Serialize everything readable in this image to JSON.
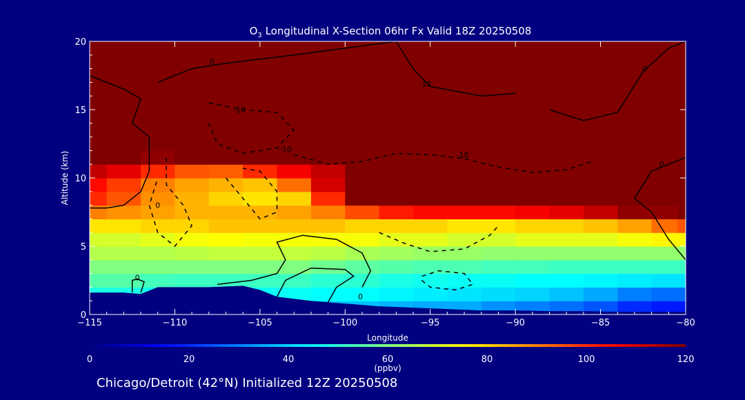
{
  "page": {
    "background": "#000080",
    "footer": "Chicago/Detroit (42°N) Initialized 12Z 20250508"
  },
  "chart_data": {
    "type": "heatmap",
    "title": {
      "species": "O",
      "subscript": "3",
      "text": " Longitudinal X-Section 06hr  Fx Valid 18Z 20250508"
    },
    "xlabel": "Longitude",
    "ylabel": "Altitude (km)",
    "xlim": [
      -115,
      -80
    ],
    "ylim": [
      0,
      20
    ],
    "xticks": [
      -115,
      -110,
      -105,
      -100,
      -95,
      -90,
      -85,
      -80
    ],
    "yticks": [
      0,
      5,
      10,
      15,
      20
    ],
    "colorbar": {
      "label": "(ppbv)",
      "range": [
        0,
        120
      ],
      "ticks": [
        0,
        20,
        40,
        60,
        80,
        100,
        120
      ],
      "colormap": "jet"
    },
    "ozone_field": {
      "x": [
        -115,
        -113,
        -111,
        -109,
        -107,
        -105,
        -103,
        -101,
        -99,
        -97,
        -95,
        -93,
        -91,
        -89,
        -87,
        -85,
        -83,
        -81,
        -80
      ],
      "altitude_km": [
        0.5,
        1.5,
        2.5,
        3.5,
        4.5,
        5.5,
        6.5,
        7.5,
        8.5,
        9.5,
        10.5,
        11.5,
        12.5,
        13.5,
        14.5,
        15.5,
        17.0,
        19.0
      ],
      "ppbv": [
        [
          45,
          45,
          40,
          38,
          38,
          38,
          38,
          38,
          38,
          36,
          35,
          35,
          32,
          30,
          28,
          25,
          20,
          18,
          18
        ],
        [
          48,
          48,
          47,
          46,
          46,
          46,
          46,
          45,
          45,
          44,
          43,
          42,
          41,
          40,
          38,
          35,
          30,
          28,
          28
        ],
        [
          55,
          55,
          53,
          52,
          52,
          52,
          52,
          50,
          50,
          48,
          47,
          46,
          46,
          45,
          45,
          44,
          43,
          42,
          42
        ],
        [
          60,
          60,
          60,
          60,
          60,
          60,
          60,
          58,
          56,
          55,
          54,
          54,
          53,
          53,
          52,
          52,
          52,
          52,
          52
        ],
        [
          66,
          66,
          66,
          67,
          68,
          68,
          68,
          67,
          65,
          64,
          63,
          63,
          62,
          62,
          62,
          62,
          62,
          62,
          62
        ],
        [
          70,
          70,
          72,
          74,
          75,
          74,
          74,
          74,
          74,
          72,
          72,
          70,
          70,
          72,
          72,
          72,
          74,
          76,
          76
        ],
        [
          78,
          78,
          80,
          80,
          82,
          82,
          82,
          82,
          80,
          80,
          80,
          78,
          78,
          80,
          80,
          82,
          86,
          92,
          95
        ],
        [
          90,
          88,
          86,
          84,
          84,
          84,
          86,
          90,
          96,
          102,
          104,
          104,
          104,
          106,
          108,
          112,
          118,
          118,
          120
        ],
        [
          100,
          95,
          88,
          84,
          80,
          78,
          80,
          100,
          120,
          120,
          120,
          120,
          120,
          120,
          120,
          120,
          120,
          120,
          120
        ],
        [
          104,
          98,
          90,
          86,
          84,
          82,
          92,
          110,
          120,
          120,
          120,
          120,
          120,
          120,
          120,
          120,
          120,
          120,
          120
        ],
        [
          112,
          108,
          100,
          95,
          94,
          100,
          106,
          112,
          120,
          120,
          120,
          120,
          120,
          120,
          120,
          120,
          120,
          120,
          120
        ],
        [
          120,
          120,
          118,
          120,
          120,
          120,
          120,
          120,
          120,
          120,
          120,
          120,
          120,
          120,
          120,
          120,
          120,
          120,
          120
        ],
        [
          120,
          120,
          120,
          120,
          120,
          120,
          120,
          120,
          120,
          120,
          120,
          120,
          120,
          120,
          120,
          120,
          120,
          120,
          120
        ],
        [
          120,
          120,
          120,
          120,
          120,
          120,
          120,
          120,
          120,
          120,
          120,
          120,
          120,
          120,
          120,
          120,
          120,
          120,
          120
        ],
        [
          120,
          120,
          120,
          120,
          120,
          120,
          120,
          120,
          120,
          120,
          120,
          120,
          120,
          120,
          120,
          120,
          120,
          120,
          120
        ],
        [
          120,
          120,
          120,
          120,
          120,
          120,
          120,
          120,
          120,
          120,
          120,
          120,
          120,
          120,
          120,
          120,
          120,
          120,
          120
        ],
        [
          120,
          120,
          120,
          120,
          120,
          120,
          120,
          120,
          120,
          120,
          120,
          120,
          120,
          120,
          120,
          120,
          120,
          120,
          120
        ],
        [
          120,
          120,
          120,
          120,
          120,
          120,
          120,
          120,
          120,
          120,
          120,
          120,
          120,
          120,
          120,
          120,
          120,
          120,
          120
        ]
      ]
    },
    "terrain": {
      "x": [
        -115,
        -113,
        -112,
        -111,
        -110,
        -108,
        -106,
        -105,
        -104,
        -102,
        -100,
        -98,
        -96,
        -94,
        -92,
        -90,
        -88,
        -86,
        -84,
        -82,
        -80
      ],
      "altitude_km": [
        1.6,
        1.6,
        1.5,
        2.0,
        2.0,
        2.0,
        2.1,
        1.8,
        1.3,
        1.0,
        0.8,
        0.6,
        0.5,
        0.4,
        0.3,
        0.3,
        0.25,
        0.25,
        0.2,
        0.2,
        0.2
      ]
    },
    "contour_labels": [
      {
        "text": "0",
        "x": -107.8,
        "y": 18.3
      },
      {
        "text": "-10",
        "x": -95.3,
        "y": 16.7
      },
      {
        "text": "-10",
        "x": -106.2,
        "y": 14.8
      },
      {
        "text": "-10",
        "x": -103.5,
        "y": 11.9
      },
      {
        "text": "-10",
        "x": -93.1,
        "y": 11.5
      },
      {
        "text": "0",
        "x": -111,
        "y": 7.8
      },
      {
        "text": "0",
        "x": -81.4,
        "y": 10.8
      },
      {
        "text": "0",
        "x": -82.4,
        "y": 17.8
      },
      {
        "text": "0",
        "x": -112.2,
        "y": 2.5
      },
      {
        "text": "0",
        "x": -99.1,
        "y": 1.1
      }
    ]
  }
}
